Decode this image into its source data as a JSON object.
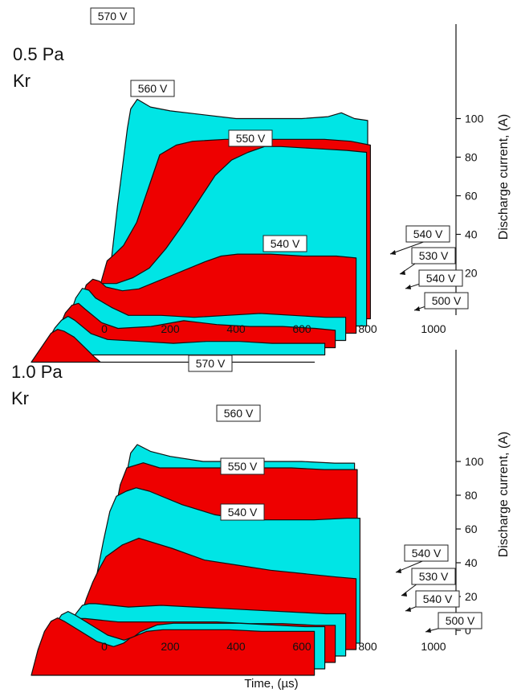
{
  "colors": {
    "red": "#ee0000",
    "cyan": "#00e5e5",
    "outline": "#111111"
  },
  "xlabel": "Time, (µs)",
  "ylabel": "Discharge current, (A)",
  "chart_data": [
    {
      "type": "area",
      "panel": "top",
      "condition": [
        "0.5 Pa",
        "Kr"
      ],
      "x_ticks": [
        0,
        200,
        400,
        600,
        800,
        1000
      ],
      "y_ticks": [
        20,
        40,
        60,
        80,
        100
      ],
      "xlim": [
        0,
        1100
      ],
      "ylim": [
        0,
        110
      ],
      "series": [
        {
          "name": "570 V",
          "color": "cyan",
          "points": [
            [
              0,
              0
            ],
            [
              20,
              25
            ],
            [
              40,
              55
            ],
            [
              55,
              75
            ],
            [
              70,
              95
            ],
            [
              80,
              105
            ],
            [
              100,
              110
            ],
            [
              140,
              106
            ],
            [
              200,
              104
            ],
            [
              300,
              102
            ],
            [
              400,
              100
            ],
            [
              500,
              100
            ],
            [
              600,
              100
            ],
            [
              680,
              101
            ],
            [
              720,
              103
            ],
            [
              760,
              100
            ],
            [
              800,
              99
            ],
            [
              800,
              0
            ]
          ]
        },
        {
          "name": "560 V",
          "color": "red",
          "points": [
            [
              0,
              0
            ],
            [
              20,
              18
            ],
            [
              40,
              30
            ],
            [
              60,
              33
            ],
            [
              90,
              38
            ],
            [
              130,
              50
            ],
            [
              170,
              70
            ],
            [
              200,
              85
            ],
            [
              250,
              90
            ],
            [
              300,
              92
            ],
            [
              400,
              93
            ],
            [
              500,
              93
            ],
            [
              600,
              93
            ],
            [
              700,
              93
            ],
            [
              780,
              92
            ],
            [
              840,
              90
            ],
            [
              840,
              0
            ]
          ]
        },
        {
          "name": "550 V",
          "color": "cyan",
          "points": [
            [
              0,
              0
            ],
            [
              20,
              12
            ],
            [
              40,
              20
            ],
            [
              60,
              22
            ],
            [
              100,
              22
            ],
            [
              150,
              25
            ],
            [
              200,
              30
            ],
            [
              250,
              40
            ],
            [
              300,
              52
            ],
            [
              350,
              65
            ],
            [
              400,
              78
            ],
            [
              450,
              86
            ],
            [
              500,
              90
            ],
            [
              550,
              93
            ],
            [
              600,
              93
            ],
            [
              700,
              92
            ],
            [
              800,
              91
            ],
            [
              860,
              90
            ],
            [
              860,
              0
            ]
          ]
        },
        {
          "name": "540 V",
          "color": "red",
          "points": [
            [
              0,
              0
            ],
            [
              20,
              15
            ],
            [
              40,
              25
            ],
            [
              60,
              28
            ],
            [
              80,
              27
            ],
            [
              100,
              24
            ],
            [
              150,
              22
            ],
            [
              200,
              23
            ],
            [
              300,
              30
            ],
            [
              400,
              37
            ],
            [
              450,
              40
            ],
            [
              500,
              41
            ],
            [
              600,
              41
            ],
            [
              700,
              40
            ],
            [
              800,
              40
            ],
            [
              860,
              39
            ],
            [
              860,
              0
            ]
          ]
        },
        {
          "name": "540 V",
          "color": "cyan",
          "points": [
            [
              0,
              0
            ],
            [
              20,
              12
            ],
            [
              40,
              22
            ],
            [
              60,
              27
            ],
            [
              80,
              26
            ],
            [
              100,
              22
            ],
            [
              150,
              17
            ],
            [
              200,
              13
            ],
            [
              300,
              13
            ],
            [
              400,
              12
            ],
            [
              500,
              13
            ],
            [
              600,
              14
            ],
            [
              700,
              13
            ],
            [
              800,
              12
            ],
            [
              860,
              12
            ],
            [
              860,
              0
            ]
          ]
        },
        {
          "name": "530 V",
          "color": "red",
          "points": [
            [
              0,
              0
            ],
            [
              20,
              10
            ],
            [
              40,
              18
            ],
            [
              60,
              22
            ],
            [
              80,
              23
            ],
            [
              100,
              20
            ],
            [
              150,
              13
            ],
            [
              200,
              10
            ],
            [
              300,
              11
            ],
            [
              400,
              14
            ],
            [
              500,
              12
            ],
            [
              600,
              11
            ],
            [
              700,
              11
            ],
            [
              800,
              10
            ],
            [
              860,
              9
            ],
            [
              860,
              0
            ]
          ]
        },
        {
          "name": "540 V",
          "color": "cyan",
          "points": [
            [
              0,
              0
            ],
            [
              20,
              8
            ],
            [
              40,
              14
            ],
            [
              60,
              18
            ],
            [
              80,
              20
            ],
            [
              100,
              18
            ],
            [
              150,
              11
            ],
            [
              200,
              8
            ],
            [
              300,
              7
            ],
            [
              400,
              6
            ],
            [
              500,
              7
            ],
            [
              600,
              7
            ],
            [
              700,
              6
            ],
            [
              800,
              6
            ],
            [
              860,
              6
            ],
            [
              860,
              0
            ]
          ]
        },
        {
          "name": "500 V",
          "color": "red",
          "points": [
            [
              0,
              0
            ],
            [
              20,
              5
            ],
            [
              40,
              10
            ],
            [
              60,
              15
            ],
            [
              80,
              17
            ],
            [
              100,
              16
            ],
            [
              130,
              13
            ],
            [
              160,
              8
            ],
            [
              190,
              3
            ],
            [
              210,
              0
            ],
            [
              400,
              0
            ],
            [
              860,
              0
            ]
          ]
        }
      ]
    },
    {
      "type": "area",
      "panel": "bottom",
      "condition": [
        "1.0 Pa",
        "Kr"
      ],
      "x_ticks": [
        0,
        200,
        400,
        600,
        800,
        1000
      ],
      "y_ticks": [
        0,
        20,
        40,
        60,
        80,
        100
      ],
      "xlim": [
        0,
        1100
      ],
      "ylim": [
        0,
        110
      ],
      "series": [
        {
          "name": "570 V",
          "color": "cyan",
          "points": [
            [
              0,
              0
            ],
            [
              20,
              25
            ],
            [
              40,
              55
            ],
            [
              55,
              75
            ],
            [
              70,
              95
            ],
            [
              80,
              105
            ],
            [
              100,
              110
            ],
            [
              140,
              106
            ],
            [
              200,
              103
            ],
            [
              300,
              100
            ],
            [
              400,
              100
            ],
            [
              500,
              100
            ],
            [
              600,
              100
            ],
            [
              700,
              99
            ],
            [
              760,
              99
            ],
            [
              760,
              0
            ]
          ]
        },
        {
          "name": "560 V",
          "color": "red",
          "points": [
            [
              0,
              0
            ],
            [
              20,
              25
            ],
            [
              40,
              50
            ],
            [
              60,
              70
            ],
            [
              80,
              90
            ],
            [
              100,
              100
            ],
            [
              150,
              103
            ],
            [
              200,
              100
            ],
            [
              300,
              100
            ],
            [
              400,
              100
            ],
            [
              500,
              100
            ],
            [
              600,
              100
            ],
            [
              700,
              99
            ],
            [
              800,
              99
            ],
            [
              800,
              0
            ]
          ]
        },
        {
          "name": "550 V",
          "color": "cyan",
          "points": [
            [
              0,
              0
            ],
            [
              20,
              20
            ],
            [
              40,
              40
            ],
            [
              60,
              60
            ],
            [
              80,
              78
            ],
            [
              100,
              87
            ],
            [
              130,
              90
            ],
            [
              160,
              92
            ],
            [
              200,
              90
            ],
            [
              300,
              82
            ],
            [
              400,
              76
            ],
            [
              500,
              73
            ],
            [
              600,
              73
            ],
            [
              700,
              73
            ],
            [
              800,
              74
            ],
            [
              840,
              74
            ],
            [
              840,
              0
            ]
          ]
        },
        {
          "name": "540 V",
          "color": "red",
          "points": [
            [
              0,
              0
            ],
            [
              20,
              18
            ],
            [
              40,
              30
            ],
            [
              60,
              40
            ],
            [
              80,
              48
            ],
            [
              100,
              55
            ],
            [
              150,
              62
            ],
            [
              200,
              66
            ],
            [
              300,
              60
            ],
            [
              400,
              53
            ],
            [
              500,
              50
            ],
            [
              600,
              47
            ],
            [
              700,
              45
            ],
            [
              800,
              43
            ],
            [
              860,
              42
            ],
            [
              860,
              0
            ]
          ]
        },
        {
          "name": "540 V",
          "color": "cyan",
          "points": [
            [
              0,
              0
            ],
            [
              20,
              15
            ],
            [
              40,
              25
            ],
            [
              60,
              30
            ],
            [
              80,
              31
            ],
            [
              100,
              31
            ],
            [
              150,
              30
            ],
            [
              200,
              29
            ],
            [
              300,
              30
            ],
            [
              400,
              29
            ],
            [
              500,
              28
            ],
            [
              600,
              27
            ],
            [
              700,
              26
            ],
            [
              800,
              25
            ],
            [
              860,
              25
            ],
            [
              860,
              0
            ]
          ]
        },
        {
          "name": "530 V",
          "color": "red",
          "points": [
            [
              0,
              0
            ],
            [
              20,
              14
            ],
            [
              40,
              24
            ],
            [
              60,
              26
            ],
            [
              80,
              26
            ],
            [
              100,
              26
            ],
            [
              150,
              25
            ],
            [
              200,
              24
            ],
            [
              300,
              24
            ],
            [
              400,
              24
            ],
            [
              500,
              24
            ],
            [
              600,
              23
            ],
            [
              700,
              23
            ],
            [
              800,
              22
            ],
            [
              860,
              22
            ],
            [
              860,
              0
            ]
          ]
        },
        {
          "name": "540 V",
          "color": "cyan",
          "points": [
            [
              0,
              0
            ],
            [
              20,
              15
            ],
            [
              40,
              26
            ],
            [
              60,
              32
            ],
            [
              80,
              34
            ],
            [
              100,
              32
            ],
            [
              150,
              26
            ],
            [
              200,
              20
            ],
            [
              250,
              17
            ],
            [
              280,
              19
            ],
            [
              300,
              22
            ],
            [
              350,
              26
            ],
            [
              400,
              27
            ],
            [
              500,
              27
            ],
            [
              600,
              27
            ],
            [
              700,
              26
            ],
            [
              800,
              25
            ],
            [
              860,
              25
            ],
            [
              860,
              0
            ]
          ]
        },
        {
          "name": "500 V",
          "color": "red",
          "points": [
            [
              0,
              0
            ],
            [
              20,
              15
            ],
            [
              40,
              26
            ],
            [
              60,
              32
            ],
            [
              80,
              34
            ],
            [
              100,
              32
            ],
            [
              150,
              26
            ],
            [
              200,
              20
            ],
            [
              250,
              17
            ],
            [
              280,
              19
            ],
            [
              300,
              22
            ],
            [
              350,
              26
            ],
            [
              400,
              27
            ],
            [
              500,
              27
            ],
            [
              600,
              27
            ],
            [
              700,
              26
            ],
            [
              800,
              26
            ],
            [
              860,
              26
            ],
            [
              860,
              0
            ]
          ]
        }
      ]
    }
  ]
}
